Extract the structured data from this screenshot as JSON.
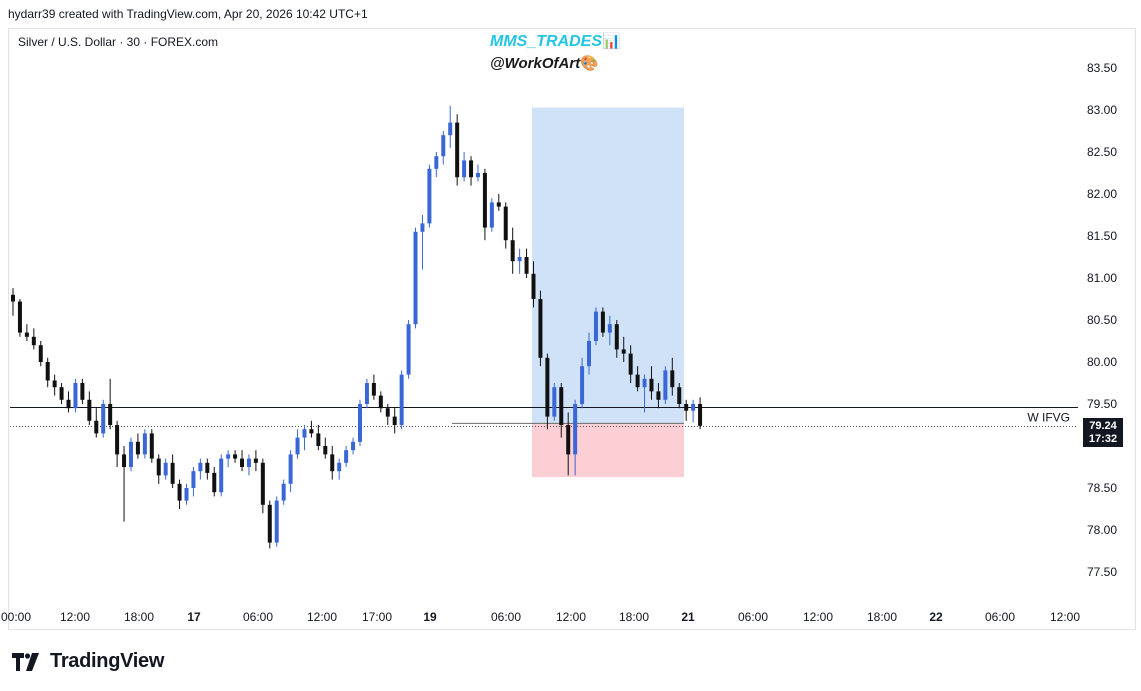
{
  "header": {
    "text": "hydarr39 created with TradingView.com, Apr 20, 2026 10:42 UTC+1"
  },
  "symbol": {
    "text": "Silver / U.S. Dollar · 30 · FOREX.com"
  },
  "watermark": {
    "line1": "MMS_TRADES",
    "line1_icon": "📊",
    "line2": "@WorkOfArt",
    "line2_icon": "🎨"
  },
  "logo": {
    "text": "TradingView",
    "icon": "tradingview-logo-icon"
  },
  "colors": {
    "up": "#3a67d6",
    "down": "#111111",
    "target_zone": "#cfe2f8",
    "stop_zone": "#fbcfd3",
    "line": "#131722"
  },
  "price_tag": {
    "price": "79.24",
    "countdown": "17:32"
  },
  "chart_data": {
    "type": "candlestick",
    "y_ticks": [
      "83.50",
      "83.00",
      "82.50",
      "82.00",
      "81.50",
      "81.00",
      "80.50",
      "80.00",
      "79.50",
      "79.00",
      "78.50",
      "78.00",
      "77.50"
    ],
    "ylim": [
      77.2,
      83.85
    ],
    "x_ticks": [
      "00:00",
      "12:00",
      "18:00",
      "17",
      "06:00",
      "12:00",
      "17:00",
      "19",
      "06:00",
      "12:00",
      "18:00",
      "21",
      "06:00",
      "12:00",
      "18:00",
      "22",
      "06:00",
      "12:00"
    ],
    "horizontal_lines": [
      {
        "label": "W IFVG",
        "price": 79.46,
        "style": "solid"
      },
      {
        "label": "",
        "price": 79.24,
        "style": "dotted"
      }
    ],
    "position": {
      "entry": 79.27,
      "target": 83.03,
      "stop": 78.63
    },
    "candles": [
      [
        80.8,
        80.88,
        80.55,
        80.72
      ],
      [
        80.72,
        80.75,
        80.3,
        80.35
      ],
      [
        80.35,
        80.45,
        80.25,
        80.3
      ],
      [
        80.3,
        80.4,
        80.15,
        80.2
      ],
      [
        80.2,
        80.25,
        79.95,
        80.0
      ],
      [
        80.0,
        80.05,
        79.7,
        79.78
      ],
      [
        79.78,
        79.85,
        79.6,
        79.7
      ],
      [
        79.7,
        79.75,
        79.5,
        79.55
      ],
      [
        79.55,
        79.65,
        79.4,
        79.45
      ],
      [
        79.45,
        79.8,
        79.4,
        79.75
      ],
      [
        79.75,
        79.8,
        79.5,
        79.55
      ],
      [
        79.55,
        79.65,
        79.25,
        79.3
      ],
      [
        79.3,
        79.45,
        79.1,
        79.15
      ],
      [
        79.15,
        79.55,
        79.1,
        79.5
      ],
      [
        79.5,
        79.8,
        79.2,
        79.25
      ],
      [
        79.25,
        79.3,
        78.75,
        78.9
      ],
      [
        78.9,
        79.0,
        78.1,
        78.75
      ],
      [
        78.75,
        79.1,
        78.7,
        79.05
      ],
      [
        79.05,
        79.15,
        78.85,
        78.9
      ],
      [
        78.9,
        79.2,
        78.85,
        79.15
      ],
      [
        79.15,
        79.2,
        78.8,
        78.85
      ],
      [
        78.85,
        78.9,
        78.55,
        78.65
      ],
      [
        78.65,
        78.85,
        78.6,
        78.8
      ],
      [
        78.8,
        78.9,
        78.5,
        78.55
      ],
      [
        78.55,
        78.6,
        78.25,
        78.35
      ],
      [
        78.35,
        78.55,
        78.3,
        78.5
      ],
      [
        78.5,
        78.75,
        78.4,
        78.7
      ],
      [
        78.7,
        78.85,
        78.6,
        78.8
      ],
      [
        78.8,
        78.85,
        78.6,
        78.68
      ],
      [
        78.68,
        78.75,
        78.4,
        78.45
      ],
      [
        78.45,
        78.9,
        78.4,
        78.85
      ],
      [
        78.85,
        78.95,
        78.75,
        78.9
      ],
      [
        78.9,
        78.95,
        78.8,
        78.85
      ],
      [
        78.85,
        78.95,
        78.7,
        78.75
      ],
      [
        78.75,
        78.9,
        78.65,
        78.85
      ],
      [
        78.85,
        78.95,
        78.7,
        78.8
      ],
      [
        78.8,
        78.85,
        78.2,
        78.3
      ],
      [
        78.3,
        78.35,
        77.78,
        77.85
      ],
      [
        77.85,
        78.4,
        77.8,
        78.35
      ],
      [
        78.35,
        78.6,
        78.3,
        78.55
      ],
      [
        78.55,
        78.95,
        78.45,
        78.9
      ],
      [
        78.9,
        79.2,
        78.85,
        79.1
      ],
      [
        79.1,
        79.25,
        78.95,
        79.2
      ],
      [
        79.2,
        79.3,
        79.1,
        79.15
      ],
      [
        79.15,
        79.25,
        78.95,
        79.0
      ],
      [
        79.0,
        79.1,
        78.85,
        78.9
      ],
      [
        78.9,
        79.0,
        78.6,
        78.7
      ],
      [
        78.7,
        78.85,
        78.6,
        78.8
      ],
      [
        78.8,
        79.0,
        78.75,
        78.95
      ],
      [
        78.95,
        79.1,
        78.9,
        79.05
      ],
      [
        79.05,
        79.55,
        79.0,
        79.5
      ],
      [
        79.5,
        79.8,
        79.45,
        79.75
      ],
      [
        79.75,
        79.85,
        79.55,
        79.6
      ],
      [
        79.6,
        79.65,
        79.4,
        79.45
      ],
      [
        79.45,
        79.5,
        79.25,
        79.35
      ],
      [
        79.35,
        79.45,
        79.15,
        79.25
      ],
      [
        79.25,
        79.9,
        79.2,
        79.85
      ],
      [
        79.85,
        80.5,
        79.8,
        80.45
      ],
      [
        80.45,
        81.6,
        80.4,
        81.55
      ],
      [
        81.55,
        81.75,
        81.1,
        81.65
      ],
      [
        81.65,
        82.35,
        81.6,
        82.3
      ],
      [
        82.3,
        82.5,
        82.2,
        82.45
      ],
      [
        82.45,
        82.75,
        82.35,
        82.7
      ],
      [
        82.7,
        83.05,
        82.55,
        82.85
      ],
      [
        82.85,
        82.95,
        82.1,
        82.2
      ],
      [
        82.2,
        82.5,
        82.15,
        82.4
      ],
      [
        82.4,
        82.45,
        82.1,
        82.2
      ],
      [
        82.2,
        82.35,
        82.15,
        82.25
      ],
      [
        82.25,
        82.3,
        81.45,
        81.6
      ],
      [
        81.6,
        81.95,
        81.55,
        81.9
      ],
      [
        81.9,
        82.0,
        81.8,
        81.85
      ],
      [
        81.85,
        81.9,
        81.35,
        81.45
      ],
      [
        81.45,
        81.6,
        81.05,
        81.2
      ],
      [
        81.2,
        81.35,
        81.05,
        81.25
      ],
      [
        81.25,
        81.35,
        81.0,
        81.05
      ],
      [
        81.05,
        81.2,
        80.65,
        80.75
      ],
      [
        80.75,
        80.85,
        79.95,
        80.05
      ],
      [
        80.05,
        80.1,
        79.2,
        79.35
      ],
      [
        79.35,
        79.75,
        79.3,
        79.7
      ],
      [
        79.7,
        79.75,
        79.1,
        79.25
      ],
      [
        79.25,
        79.4,
        78.65,
        78.9
      ],
      [
        78.9,
        79.55,
        78.65,
        79.5
      ],
      [
        79.5,
        80.05,
        79.45,
        79.95
      ],
      [
        79.95,
        80.35,
        79.85,
        80.25
      ],
      [
        80.25,
        80.65,
        80.2,
        80.6
      ],
      [
        80.6,
        80.65,
        80.3,
        80.35
      ],
      [
        80.35,
        80.55,
        80.2,
        80.45
      ],
      [
        80.45,
        80.5,
        80.05,
        80.15
      ],
      [
        80.15,
        80.3,
        80.0,
        80.1
      ],
      [
        80.1,
        80.2,
        79.75,
        79.85
      ],
      [
        79.85,
        79.95,
        79.65,
        79.7
      ],
      [
        79.7,
        79.85,
        79.4,
        79.8
      ],
      [
        79.8,
        79.95,
        79.55,
        79.65
      ],
      [
        79.65,
        79.75,
        79.45,
        79.55
      ],
      [
        79.55,
        79.95,
        79.5,
        79.9
      ],
      [
        79.9,
        80.05,
        79.6,
        79.7
      ],
      [
        79.7,
        79.75,
        79.45,
        79.5
      ],
      [
        79.5,
        79.55,
        79.3,
        79.42
      ],
      [
        79.42,
        79.55,
        79.28,
        79.5
      ],
      [
        79.5,
        79.58,
        79.2,
        79.24
      ]
    ]
  }
}
